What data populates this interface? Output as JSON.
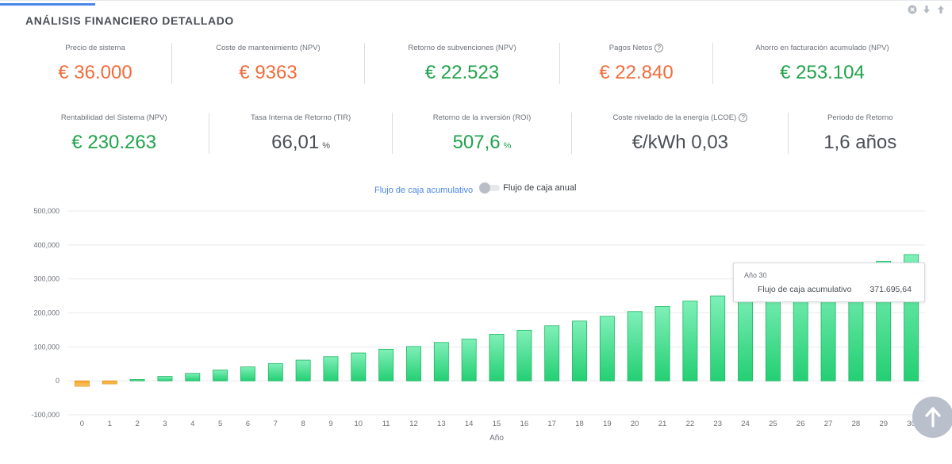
{
  "header": {
    "title": "ANÁLISIS FINANCIERO DETALLADO",
    "controls": [
      {
        "icon": "close-circle-icon"
      },
      {
        "icon": "arrow-down-icon"
      },
      {
        "icon": "arrow-up-icon"
      }
    ]
  },
  "metrics_row1": [
    {
      "label": "Precio de sistema",
      "value": "€ 36.000",
      "color": "#f26b3a"
    },
    {
      "label": "Coste de mantenimiento (NPV)",
      "value": "€ 9363",
      "color": "#f26b3a"
    },
    {
      "label": "Retorno de subvenciones (NPV)",
      "value": "€ 22.523",
      "color": "#1fa34a"
    },
    {
      "label": "Pagos Netos",
      "value": "€ 22.840",
      "color": "#f26b3a",
      "help": "?"
    },
    {
      "label": "Ahorro en facturación acumulado (NPV)",
      "value": "€ 253.104",
      "color": "#1fa34a"
    }
  ],
  "metrics_row2": [
    {
      "label": "Rentabilidad del Sistema (NPV)",
      "value": "€ 230.263",
      "color": "#1fa34a"
    },
    {
      "label": "Tasa Interna de Retorno (TIR)",
      "value": "66,01",
      "unit": "%",
      "color": "#4b4f56"
    },
    {
      "label": "Retorno de la inversión (ROI)",
      "value": "507,6",
      "unit": "%",
      "color": "#1fa34a"
    },
    {
      "label": "Coste nivelado de la energía (LCOE)",
      "value": "€/kWh 0,03",
      "color": "#4b4f56",
      "help": "?"
    },
    {
      "label": "Periodo de Retorno",
      "value": "1,6 años",
      "color": "#4b4f56"
    }
  ],
  "toggle": {
    "left_label": "Flujo de caja acumulativo",
    "right_label": "Flujo de caja anual",
    "active": "left"
  },
  "tooltip": {
    "title": "Año 30",
    "label": "Flujo de caja acumulativo",
    "value": "371.695,64"
  },
  "chart_data": {
    "type": "bar",
    "xlabel": "Año",
    "ylabel": "",
    "categories": [
      "0",
      "1",
      "2",
      "3",
      "4",
      "5",
      "6",
      "7",
      "8",
      "9",
      "10",
      "11",
      "12",
      "13",
      "14",
      "15",
      "16",
      "17",
      "18",
      "19",
      "20",
      "21",
      "22",
      "23",
      "24",
      "25",
      "26",
      "27",
      "28",
      "29",
      "30"
    ],
    "series": [
      {
        "values": [
          -16000,
          -9000,
          4000,
          13000,
          22000,
          32000,
          41000,
          51000,
          61000,
          71000,
          82000,
          93000,
          101000,
          113000,
          123000,
          137000,
          149000,
          162000,
          176000,
          190000,
          204000,
          219000,
          235000,
          250000,
          266000,
          283000,
          299000,
          317000,
          334000,
          352000,
          371695.64
        ]
      }
    ],
    "negative_color": "#f5a623",
    "positive_color": "#2ed47a",
    "ylim": [
      -100000,
      500000
    ],
    "yticks": [
      -100000,
      0,
      100000,
      200000,
      300000,
      400000,
      500000
    ],
    "ytick_labels": [
      "-100,000",
      "0",
      "100,000",
      "200,000",
      "300,000",
      "400,000",
      "500,000"
    ],
    "grid": true
  },
  "scroll_top": {
    "icon": "arrow-up-icon"
  }
}
